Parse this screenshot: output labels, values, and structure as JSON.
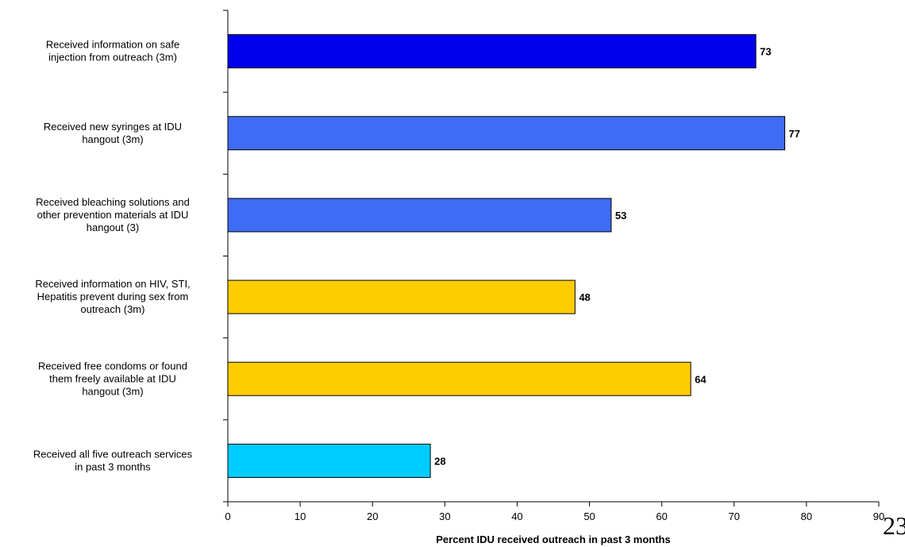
{
  "chart_data": {
    "type": "bar",
    "orientation": "horizontal",
    "categories": [
      [
        "Received information on safe",
        "injection from outreach (3m)"
      ],
      [
        "Received new syringes at IDU",
        "hangout (3m)"
      ],
      [
        "Received bleaching solutions and",
        "other prevention materials at IDU",
        "hangout (3)"
      ],
      [
        "Received information on HIV, STI,",
        "Hepatitis prevent during sex from",
        "outreach (3m)"
      ],
      [
        "Received free condoms or found",
        "them freely available at IDU",
        "hangout (3m)"
      ],
      [
        "Received all five outreach services",
        "in past 3 months"
      ]
    ],
    "values": [
      73,
      77,
      53,
      48,
      64,
      28
    ],
    "bar_colors": [
      "#0000ee",
      "#3f6cf4",
      "#3f6cf4",
      "#ffcc00",
      "#ffcc00",
      "#00ccff"
    ],
    "xlabel": "Percent IDU received outreach in past 3 months",
    "ylabel": "",
    "xlim": [
      0,
      90
    ],
    "xticks": [
      0,
      10,
      20,
      30,
      40,
      50,
      60,
      70,
      80,
      90
    ],
    "grid": false,
    "legend": "none"
  },
  "page_number": "23"
}
